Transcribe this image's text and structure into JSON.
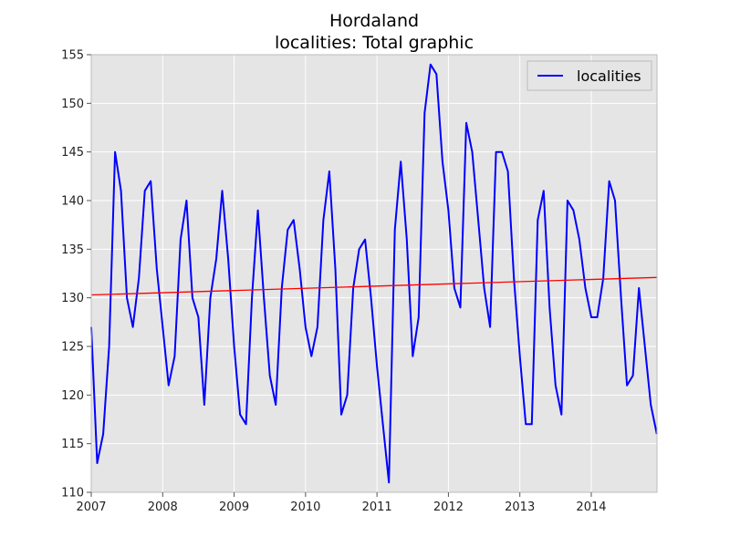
{
  "chart_data": {
    "type": "line",
    "title": "Hordaland",
    "subtitle": "localities: Total graphic",
    "xlabel": "",
    "ylabel": "",
    "xlim": [
      2007.0,
      2014.92
    ],
    "ylim": [
      110,
      155
    ],
    "grid": true,
    "legend_position": "top-right",
    "x_ticks": [
      "2007",
      "2008",
      "2009",
      "2010",
      "2011",
      "2012",
      "2013",
      "2014"
    ],
    "y_ticks": [
      "110",
      "115",
      "120",
      "125",
      "130",
      "135",
      "140",
      "145",
      "150",
      "155"
    ],
    "series": [
      {
        "name": "localities",
        "color": "#0000ff",
        "x": [
          2007.0,
          2007.083,
          2007.167,
          2007.25,
          2007.333,
          2007.417,
          2007.5,
          2007.583,
          2007.667,
          2007.75,
          2007.833,
          2007.917,
          2008.0,
          2008.083,
          2008.167,
          2008.25,
          2008.333,
          2008.417,
          2008.5,
          2008.583,
          2008.667,
          2008.75,
          2008.833,
          2008.917,
          2009.0,
          2009.083,
          2009.167,
          2009.25,
          2009.333,
          2009.417,
          2009.5,
          2009.583,
          2009.667,
          2009.75,
          2009.833,
          2009.917,
          2010.0,
          2010.083,
          2010.167,
          2010.25,
          2010.333,
          2010.417,
          2010.5,
          2010.583,
          2010.667,
          2010.75,
          2010.833,
          2010.917,
          2011.0,
          2011.083,
          2011.167,
          2011.25,
          2011.333,
          2011.417,
          2011.5,
          2011.583,
          2011.667,
          2011.75,
          2011.833,
          2011.917,
          2012.0,
          2012.083,
          2012.167,
          2012.25,
          2012.333,
          2012.417,
          2012.5,
          2012.583,
          2012.667,
          2012.75,
          2012.833,
          2012.917,
          2013.0,
          2013.083,
          2013.167,
          2013.25,
          2013.333,
          2013.417,
          2013.5,
          2013.583,
          2013.667,
          2013.75,
          2013.833,
          2013.917,
          2014.0,
          2014.083,
          2014.167,
          2014.25,
          2014.333,
          2014.417,
          2014.5,
          2014.583,
          2014.667,
          2014.75,
          2014.833,
          2014.917
        ],
        "values": [
          127,
          113,
          116,
          125,
          145,
          141,
          130,
          127,
          132,
          141,
          142,
          133,
          127,
          121,
          124,
          136,
          140,
          130,
          128,
          119,
          130,
          134,
          141,
          134,
          125,
          118,
          117,
          130,
          139,
          130,
          122,
          119,
          131,
          137,
          138,
          133,
          127,
          124,
          127,
          138,
          143,
          133,
          118,
          120,
          131,
          135,
          136,
          130,
          123,
          117,
          111,
          137,
          144,
          136,
          124,
          128,
          149,
          154,
          153,
          144,
          139,
          131,
          129,
          148,
          145,
          138,
          131,
          127,
          145,
          145,
          143,
          132,
          124,
          117,
          117,
          138,
          141,
          129,
          121,
          118,
          140,
          139,
          136,
          131,
          128,
          128,
          132,
          142,
          140,
          130,
          121,
          122,
          131,
          125,
          119,
          116
        ]
      },
      {
        "name": "",
        "color": "#ff0000",
        "x": [
          2007.0,
          2014.92
        ],
        "values": [
          130.3,
          132.1
        ]
      }
    ]
  }
}
